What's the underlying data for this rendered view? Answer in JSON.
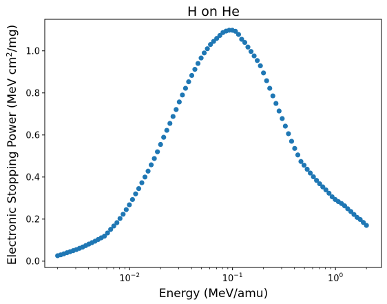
{
  "chart_data": {
    "type": "scatter",
    "title": "H on He",
    "xlabel": "Energy (MeV/amu)",
    "ylabel_main": "Electronic Stopping Power (MeV cm",
    "ylabel_sup": "2",
    "ylabel_tail": "/mg)",
    "x_scale": "log",
    "xlim": [
      0.0015,
      2.8
    ],
    "ylim": [
      -0.03,
      1.15
    ],
    "x_ticks": [
      {
        "value": 0.01,
        "base": "10",
        "exp": "−2"
      },
      {
        "value": 0.1,
        "base": "10",
        "exp": "−1"
      },
      {
        "value": 1,
        "base": "10",
        "exp": "0"
      }
    ],
    "y_ticks": [
      {
        "value": 0.0,
        "label": "0.0"
      },
      {
        "value": 0.2,
        "label": "0.2"
      },
      {
        "value": 0.4,
        "label": "0.4"
      },
      {
        "value": 0.6,
        "label": "0.6"
      },
      {
        "value": 0.8,
        "label": "0.8"
      },
      {
        "value": 1.0,
        "label": "1.0"
      }
    ],
    "grid": false,
    "marker_color": "#1f77b4",
    "x_range": [
      0.002,
      2.0
    ],
    "points": 100,
    "y": [
      0.026,
      0.03,
      0.035,
      0.04,
      0.045,
      0.05,
      0.055,
      0.061,
      0.067,
      0.074,
      0.081,
      0.088,
      0.095,
      0.103,
      0.111,
      0.119,
      0.134,
      0.151,
      0.167,
      0.183,
      0.203,
      0.223,
      0.245,
      0.268,
      0.293,
      0.32,
      0.345,
      0.373,
      0.4,
      0.428,
      0.458,
      0.488,
      0.52,
      0.555,
      0.589,
      0.622,
      0.655,
      0.688,
      0.721,
      0.757,
      0.79,
      0.822,
      0.853,
      0.883,
      0.912,
      0.94,
      0.966,
      0.99,
      1.01,
      1.03,
      1.045,
      1.059,
      1.073,
      1.087,
      1.094,
      1.098,
      1.098,
      1.093,
      1.078,
      1.055,
      1.04,
      1.018,
      0.997,
      0.976,
      0.954,
      0.929,
      0.895,
      0.858,
      0.822,
      0.786,
      0.75,
      0.714,
      0.678,
      0.642,
      0.606,
      0.57,
      0.536,
      0.505,
      0.474,
      0.456,
      0.437,
      0.419,
      0.401,
      0.384,
      0.368,
      0.353,
      0.339,
      0.323,
      0.306,
      0.293,
      0.283,
      0.274,
      0.263,
      0.249,
      0.236,
      0.222,
      0.208,
      0.198,
      0.184,
      0.17
    ]
  }
}
